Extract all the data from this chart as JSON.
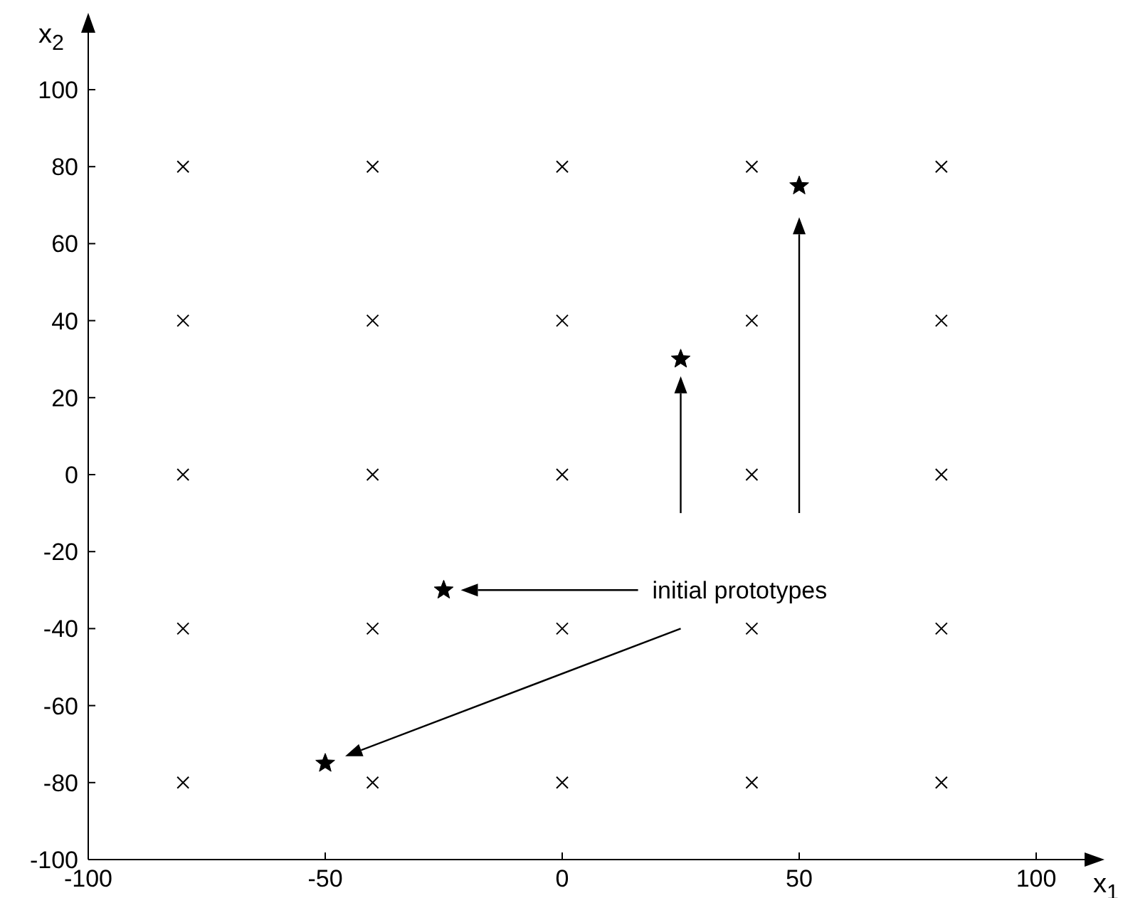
{
  "chart_data": {
    "type": "scatter",
    "xlabel": "x$_{1}$",
    "ylabel": "x$_{2}$",
    "xlim": [
      -100,
      100
    ],
    "ylim": [
      -100,
      100
    ],
    "xticks": [
      -100,
      -50,
      0,
      50,
      100
    ],
    "yticks": [
      -100,
      -80,
      -60,
      -40,
      -20,
      0,
      20,
      40,
      60,
      80,
      100
    ],
    "grid": false,
    "series": [
      {
        "color": "#000000",
        "marker": "cross",
        "x": [
          -80,
          -40,
          0,
          40,
          80,
          -80,
          -40,
          0,
          40,
          80,
          -80,
          -40,
          0,
          40,
          80,
          -80,
          -40,
          0,
          40,
          80,
          -80,
          -40,
          0,
          40,
          80
        ],
        "values": [
          80,
          80,
          80,
          80,
          80,
          40,
          40,
          40,
          40,
          40,
          0,
          0,
          0,
          0,
          0,
          -40,
          -40,
          -40,
          -40,
          -40,
          -80,
          -80,
          -80,
          -80,
          -80
        ]
      },
      {
        "color": "#000000",
        "marker": "star",
        "x": [
          50,
          25,
          -25,
          -50
        ],
        "values": [
          75,
          30,
          -30,
          -75
        ]
      }
    ],
    "annotations": [
      "initial prototypes"
    ]
  }
}
